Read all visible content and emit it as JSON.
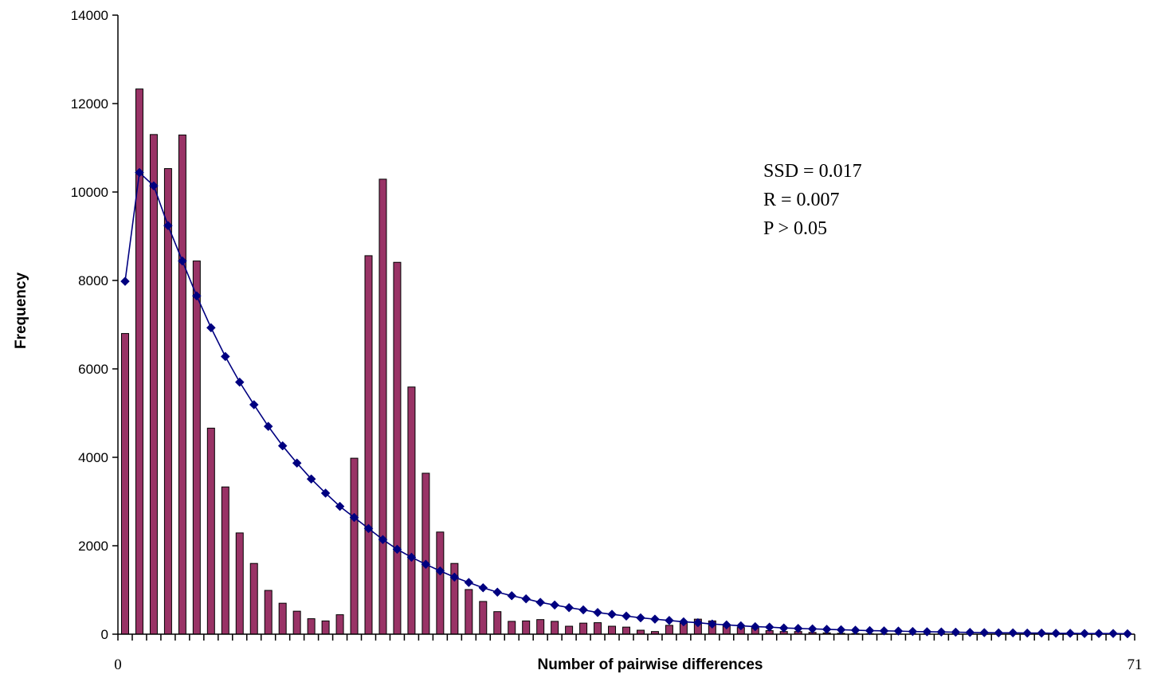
{
  "colors": {
    "bar_fill": "#993366",
    "bar_stroke": "#000000",
    "line": "#000080",
    "marker": "#000080",
    "axis": "#000000"
  },
  "chart_data": {
    "type": "bar",
    "xlabel": "Number of pairwise differences",
    "ylabel": "Frequency",
    "x_start_label": "0",
    "x_end_label": "71",
    "x_range": [
      0,
      71
    ],
    "ylim": [
      0,
      14000
    ],
    "yticks": [
      0,
      2000,
      4000,
      6000,
      8000,
      10000,
      12000,
      14000
    ],
    "ytick_labels": [
      "0",
      "2000",
      "4000",
      "6000",
      "8000",
      "10000",
      "12000",
      "14000"
    ],
    "grid": false,
    "legend": "none",
    "annotations": [
      "SSD = 0.017",
      "R = 0.007",
      "P > 0.05"
    ],
    "x": [
      0,
      1,
      2,
      3,
      4,
      5,
      6,
      7,
      8,
      9,
      10,
      11,
      12,
      13,
      14,
      15,
      16,
      17,
      18,
      19,
      20,
      21,
      22,
      23,
      24,
      25,
      26,
      27,
      28,
      29,
      30,
      31,
      32,
      33,
      34,
      35,
      36,
      37,
      38,
      39,
      40,
      41,
      42,
      43,
      44,
      45,
      46,
      47,
      48,
      49,
      50,
      51,
      52,
      53,
      54,
      55,
      56,
      57,
      58,
      59,
      60,
      61,
      62,
      63,
      64,
      65,
      66,
      67,
      68,
      69,
      70
    ],
    "series": [
      {
        "type": "bar",
        "values": [
          6800,
          12330,
          11300,
          10530,
          11290,
          8440,
          4660,
          3330,
          2290,
          1600,
          990,
          700,
          520,
          350,
          300,
          440,
          3980,
          8560,
          10290,
          8410,
          5590,
          3640,
          2310,
          1600,
          1010,
          740,
          510,
          290,
          300,
          330,
          290,
          180,
          250,
          260,
          180,
          160,
          90,
          60,
          200,
          250,
          340,
          300,
          200,
          150,
          140,
          80,
          60,
          60,
          40,
          30,
          20,
          15,
          10,
          10,
          5,
          5,
          5,
          5,
          5,
          0,
          0,
          0,
          0,
          0,
          0,
          0,
          0,
          0,
          0,
          0,
          0
        ]
      },
      {
        "type": "line",
        "values": [
          7980,
          10440,
          10140,
          9240,
          8440,
          7650,
          6930,
          6280,
          5700,
          5190,
          4700,
          4260,
          3870,
          3510,
          3190,
          2890,
          2640,
          2390,
          2140,
          1920,
          1740,
          1580,
          1430,
          1290,
          1170,
          1050,
          950,
          870,
          800,
          720,
          660,
          600,
          550,
          490,
          450,
          410,
          370,
          340,
          310,
          280,
          260,
          230,
          210,
          190,
          170,
          160,
          140,
          130,
          120,
          110,
          100,
          90,
          80,
          75,
          70,
          60,
          55,
          50,
          45,
          40,
          35,
          30,
          30,
          25,
          25,
          20,
          20,
          15,
          15,
          15,
          10
        ]
      }
    ]
  }
}
